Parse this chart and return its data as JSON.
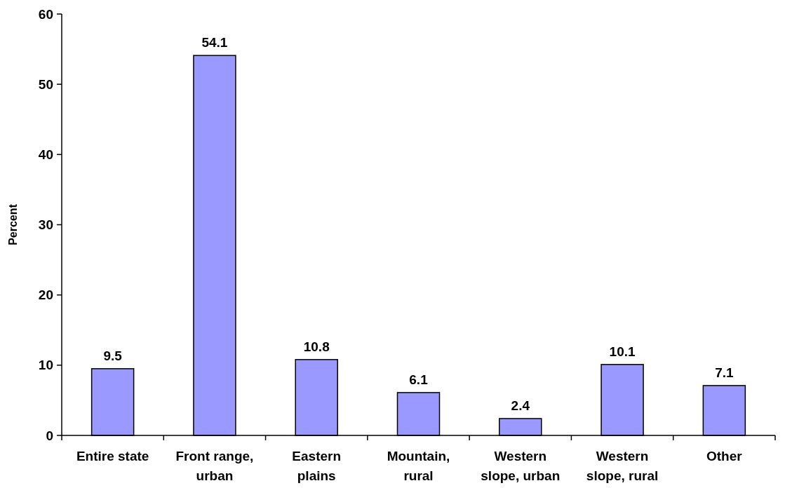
{
  "chart_data": {
    "type": "bar",
    "ylabel": "Percent",
    "categories": [
      "Entire state",
      "Front range, urban",
      "Eastern plains",
      "Mountain, rural",
      "Western slope, urban",
      "Western slope, rural",
      "Other"
    ],
    "values": [
      9.5,
      54.1,
      10.8,
      6.1,
      2.4,
      10.1,
      7.1
    ],
    "color": "#9999ff",
    "data_labels": true,
    "ylim": [
      0,
      60
    ],
    "yticks": [
      0,
      10,
      20,
      30,
      40,
      50,
      60
    ]
  }
}
